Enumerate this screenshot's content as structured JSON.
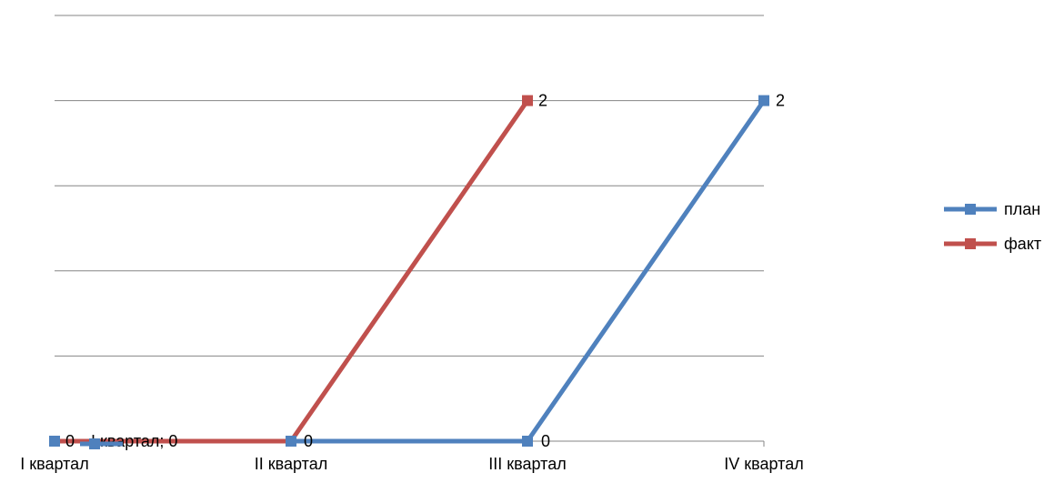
{
  "chart_data": {
    "type": "line",
    "categories": [
      "I квартал",
      "II квартал",
      "III квартал",
      "IV квартал"
    ],
    "series": [
      {
        "name": "план",
        "values": [
          0,
          0,
          0,
          2
        ],
        "color": "#4F81BD",
        "data_labels": [
          "I квартал; 0",
          "",
          "0",
          "2"
        ]
      },
      {
        "name": "факт",
        "values": [
          0,
          0,
          2,
          null
        ],
        "color": "#C0504D",
        "data_labels": [
          "0",
          "0",
          "2",
          ""
        ]
      }
    ],
    "ylim": [
      0,
      2.5
    ],
    "y_gridlines": [
      0.5,
      1,
      1.5,
      2,
      2.5
    ],
    "grid": true,
    "legend_position": "right",
    "title": "",
    "xlabel": "",
    "ylabel": ""
  }
}
